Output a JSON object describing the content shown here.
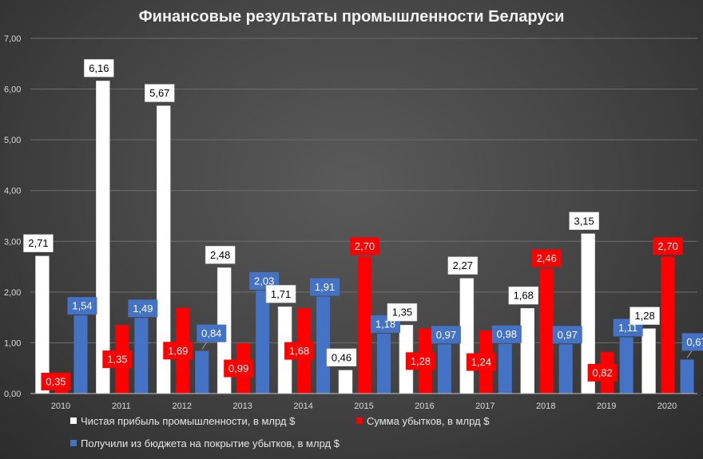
{
  "chart_data": {
    "type": "bar",
    "title": "Финансовые результаты промышленности Беларуси",
    "categories": [
      "2010",
      "2011",
      "2012",
      "2013",
      "2014",
      "2015",
      "2016",
      "2017",
      "2018",
      "2019",
      "2020"
    ],
    "series": [
      {
        "name": "Чистая прибыль промышленности, в млрд $",
        "color": "#ffffff",
        "label_text_color": "#000000",
        "values": [
          2.71,
          6.16,
          5.67,
          2.48,
          1.71,
          0.46,
          1.35,
          2.27,
          1.68,
          3.15,
          1.28
        ],
        "labels": [
          "2,71",
          "6,16",
          "5,67",
          "2,48",
          "1,71",
          "0,46",
          "1,35",
          "2,27",
          "1,68",
          "3,15",
          "1,28"
        ]
      },
      {
        "name": "Сумма убытков, в млрд $",
        "color": "#ff0000",
        "label_text_color": "#ffffff",
        "values": [
          0.35,
          1.35,
          1.69,
          0.99,
          1.68,
          2.7,
          1.28,
          1.24,
          2.46,
          0.82,
          2.7
        ],
        "labels": [
          "0,35",
          "1,35",
          "1,69",
          "0,99",
          "1,68",
          "2,70",
          "1,28",
          "1,24",
          "2,46",
          "0,82",
          "2,70"
        ]
      },
      {
        "name": "Получили из бюджета на покрытие убытков, в млрд $",
        "color": "#4472c4",
        "label_text_color": "#ffffff",
        "values": [
          1.54,
          1.49,
          0.84,
          2.03,
          1.91,
          1.18,
          0.97,
          0.98,
          0.97,
          1.11,
          0.67
        ],
        "labels": [
          "1,54",
          "1,49",
          "0,84",
          "2,03",
          "1,91",
          "1,18",
          "0,97",
          "0,98",
          "0,97",
          "1,11",
          "0,67"
        ]
      }
    ],
    "ylim": [
      0,
      7
    ],
    "yticks": [
      "0,00",
      "1,00",
      "2,00",
      "3,00",
      "4,00",
      "5,00",
      "6,00",
      "7,00"
    ],
    "xlabel": "",
    "ylabel": "",
    "legend_position": "bottom"
  }
}
